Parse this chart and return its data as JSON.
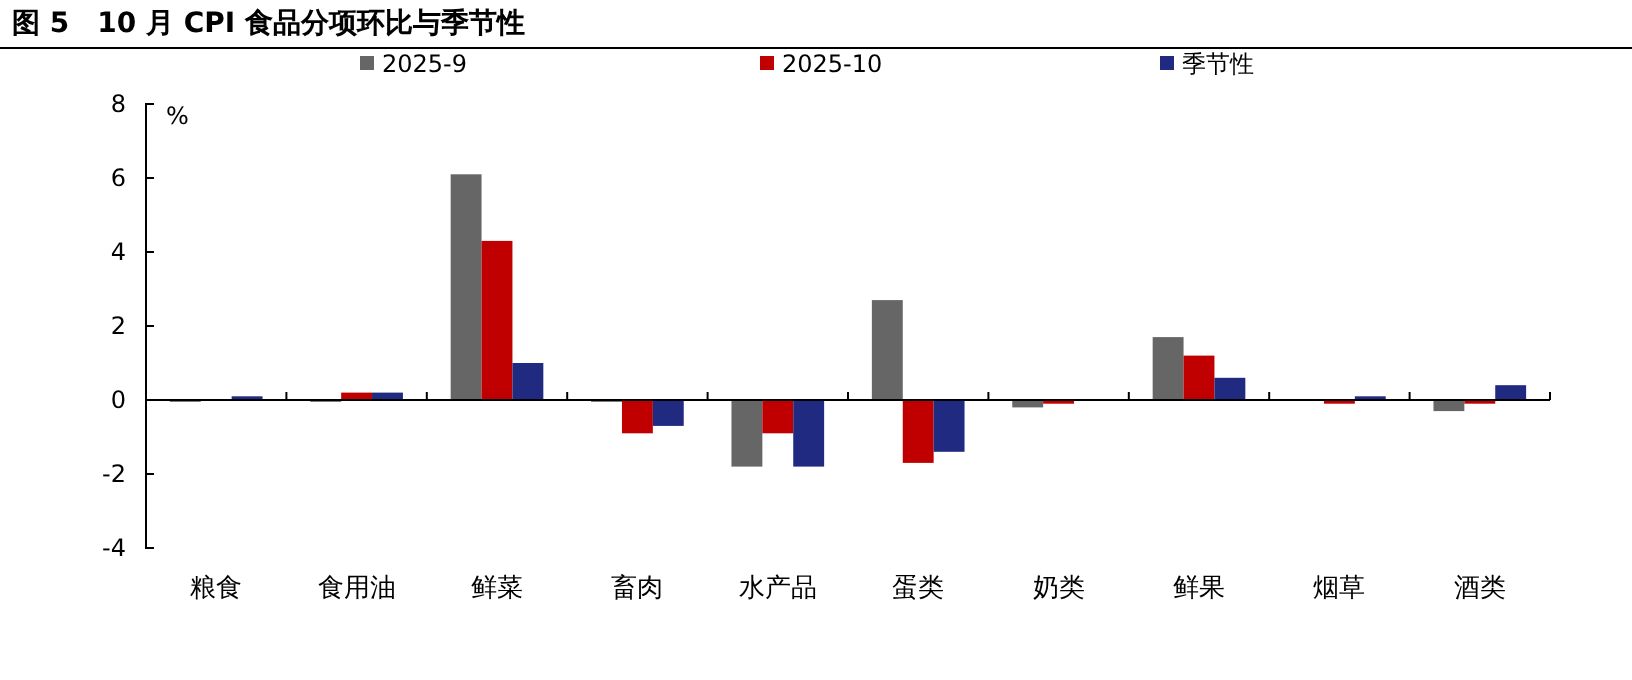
{
  "chart_data": {
    "type": "bar",
    "title": "图 5　10 月 CPI 食品分项环比与季节性",
    "ylabel": "%",
    "categories": [
      "粮食",
      "食用油",
      "鲜菜",
      "畜肉",
      "水产品",
      "蛋类",
      "奶类",
      "鲜果",
      "烟草",
      "酒类"
    ],
    "series": [
      {
        "name": "2025-9",
        "color": "#666666",
        "values": [
          -0.05,
          -0.05,
          6.1,
          -0.05,
          -1.8,
          2.7,
          -0.2,
          1.7,
          0,
          -0.3
        ]
      },
      {
        "name": "2025-10",
        "color": "#c00000",
        "values": [
          0,
          0.2,
          4.3,
          -0.9,
          -0.9,
          -1.7,
          -0.1,
          1.2,
          -0.1,
          -0.1
        ]
      },
      {
        "name": "季节性",
        "color": "#1f2a80",
        "values": [
          0.1,
          0.2,
          1.0,
          -0.7,
          -1.8,
          -1.4,
          0,
          0.6,
          0.1,
          0.4
        ]
      }
    ],
    "ylim": [
      -4,
      8
    ],
    "yticks": [
      -4,
      -2,
      0,
      2,
      4,
      6,
      8
    ],
    "legend": "top"
  }
}
